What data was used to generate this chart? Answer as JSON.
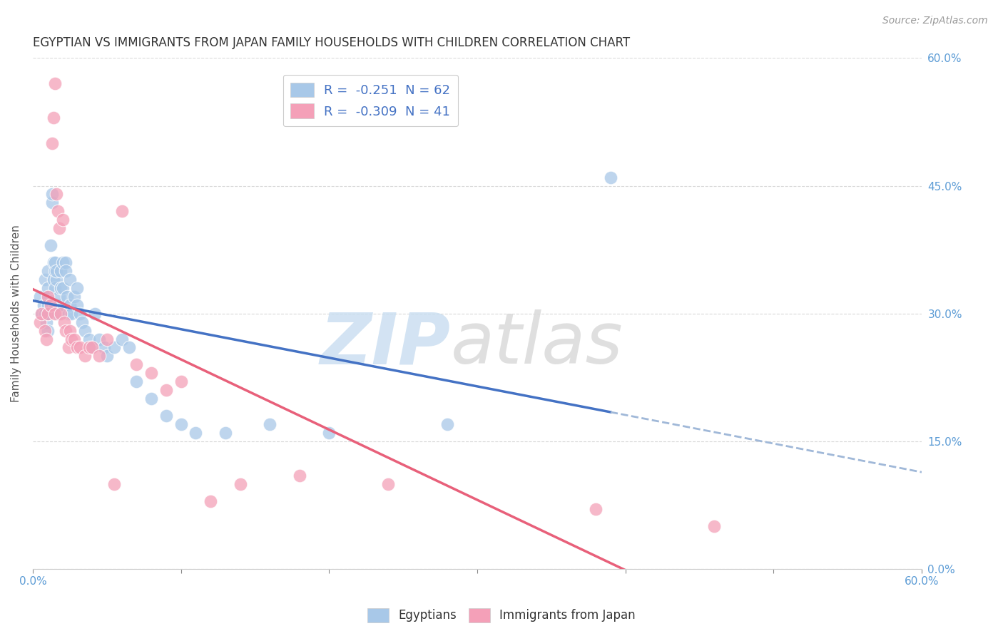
{
  "title": "EGYPTIAN VS IMMIGRANTS FROM JAPAN FAMILY HOUSEHOLDS WITH CHILDREN CORRELATION CHART",
  "source": "Source: ZipAtlas.com",
  "ylabel": "Family Households with Children",
  "xlim": [
    0.0,
    0.6
  ],
  "ylim": [
    0.0,
    0.6
  ],
  "yticks": [
    0.0,
    0.15,
    0.3,
    0.45,
    0.6
  ],
  "xticks": [
    0.0,
    0.1,
    0.2,
    0.3,
    0.4,
    0.5,
    0.6
  ],
  "ytick_labels_right": [
    "0.0%",
    "15.0%",
    "30.0%",
    "45.0%",
    "60.0%"
  ],
  "legend_labels": [
    "Egyptians",
    "Immigrants from Japan"
  ],
  "legend_R": [
    "R =  -0.251  N = 62",
    "R =  -0.309  N = 41"
  ],
  "blue_scatter_color": "#a8c8e8",
  "pink_scatter_color": "#f4a0b8",
  "blue_line_color": "#4472c4",
  "pink_line_color": "#e8607a",
  "blue_dash_color": "#a0b8d8",
  "egyptians_x": [
    0.005,
    0.006,
    0.007,
    0.008,
    0.008,
    0.009,
    0.01,
    0.01,
    0.01,
    0.01,
    0.01,
    0.01,
    0.012,
    0.013,
    0.013,
    0.014,
    0.014,
    0.015,
    0.015,
    0.015,
    0.015,
    0.016,
    0.016,
    0.017,
    0.018,
    0.018,
    0.019,
    0.019,
    0.02,
    0.02,
    0.022,
    0.022,
    0.023,
    0.024,
    0.025,
    0.025,
    0.026,
    0.028,
    0.03,
    0.03,
    0.032,
    0.033,
    0.035,
    0.038,
    0.04,
    0.042,
    0.045,
    0.048,
    0.05,
    0.055,
    0.06,
    0.065,
    0.07,
    0.08,
    0.09,
    0.1,
    0.11,
    0.13,
    0.16,
    0.2,
    0.28,
    0.39
  ],
  "egyptians_y": [
    0.32,
    0.3,
    0.31,
    0.34,
    0.3,
    0.29,
    0.35,
    0.32,
    0.3,
    0.33,
    0.28,
    0.31,
    0.38,
    0.43,
    0.44,
    0.34,
    0.36,
    0.35,
    0.33,
    0.36,
    0.31,
    0.34,
    0.35,
    0.3,
    0.31,
    0.32,
    0.35,
    0.33,
    0.36,
    0.33,
    0.36,
    0.35,
    0.32,
    0.3,
    0.34,
    0.31,
    0.3,
    0.32,
    0.31,
    0.33,
    0.3,
    0.29,
    0.28,
    0.27,
    0.26,
    0.3,
    0.27,
    0.26,
    0.25,
    0.26,
    0.27,
    0.26,
    0.22,
    0.2,
    0.18,
    0.17,
    0.16,
    0.16,
    0.17,
    0.16,
    0.17,
    0.46
  ],
  "japan_x": [
    0.005,
    0.006,
    0.008,
    0.009,
    0.01,
    0.01,
    0.012,
    0.013,
    0.014,
    0.015,
    0.015,
    0.016,
    0.017,
    0.018,
    0.019,
    0.02,
    0.021,
    0.022,
    0.024,
    0.025,
    0.026,
    0.028,
    0.03,
    0.032,
    0.035,
    0.038,
    0.04,
    0.045,
    0.05,
    0.055,
    0.06,
    0.07,
    0.08,
    0.09,
    0.1,
    0.12,
    0.14,
    0.18,
    0.24,
    0.38,
    0.46
  ],
  "japan_y": [
    0.29,
    0.3,
    0.28,
    0.27,
    0.32,
    0.3,
    0.31,
    0.5,
    0.53,
    0.57,
    0.3,
    0.44,
    0.42,
    0.4,
    0.3,
    0.41,
    0.29,
    0.28,
    0.26,
    0.28,
    0.27,
    0.27,
    0.26,
    0.26,
    0.25,
    0.26,
    0.26,
    0.25,
    0.27,
    0.1,
    0.42,
    0.24,
    0.23,
    0.21,
    0.22,
    0.08,
    0.1,
    0.11,
    0.1,
    0.07,
    0.05
  ]
}
